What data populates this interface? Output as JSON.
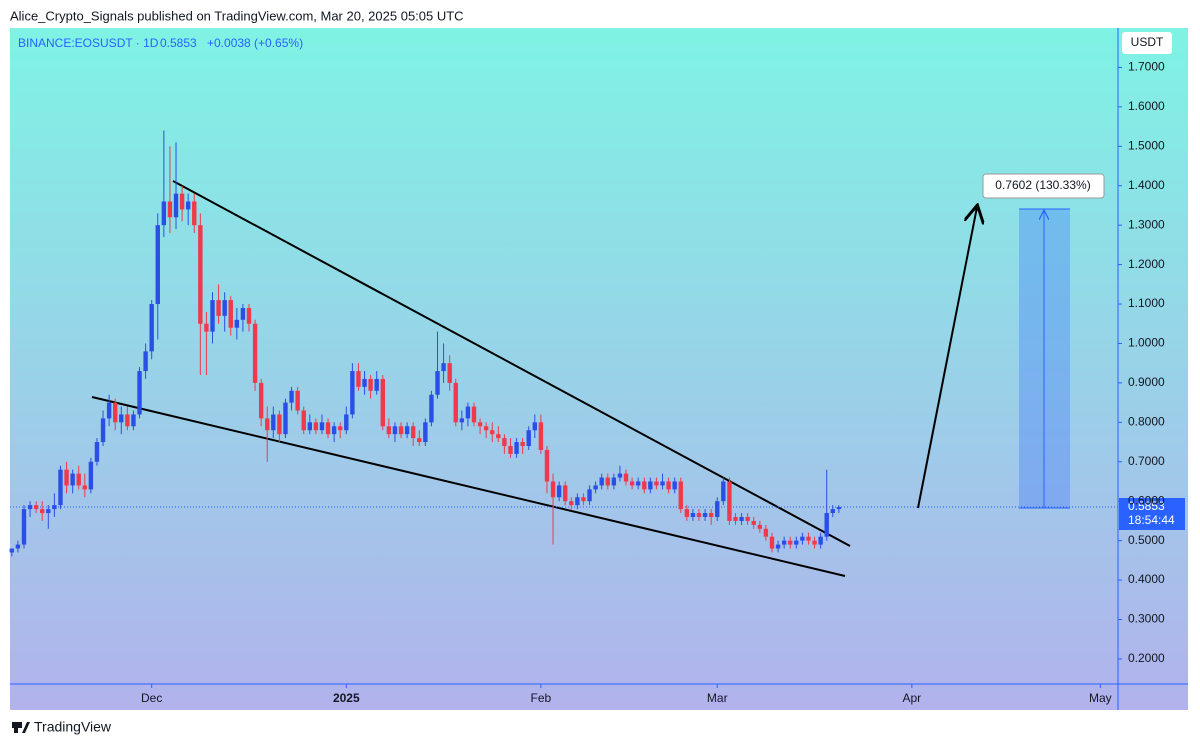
{
  "header": {
    "publisher": "Alice_Crypto_Signals published on TradingView.com, Mar 20, 2025 05:05 UTC",
    "brand": "TradingView"
  },
  "chart_data": {
    "type": "candlestick",
    "symbol": "BINANCE:EOSUSDT · 1D",
    "last": 0.5853,
    "change": "+0.0038 (+0.65%)",
    "currency": "USDT",
    "countdown": "18:54:44",
    "projection_label": "0.7602 (130.33%)",
    "up_color": "#2a4fe6",
    "down_color": "#f0394b",
    "xlim": [
      -0.3,
      181.9
    ],
    "xticks": [
      {
        "value": 23,
        "label": "Dec"
      },
      {
        "value": 55,
        "label": "2025"
      },
      {
        "value": 87,
        "label": "Feb"
      },
      {
        "value": 116,
        "label": "Mar"
      },
      {
        "value": 148,
        "label": "Apr"
      },
      {
        "value": 179,
        "label": "May"
      }
    ],
    "ylim": [
      0.139,
      1.8
    ],
    "yticks": [
      {
        "value": 0.2,
        "label": "0.2000"
      },
      {
        "value": 0.3,
        "label": "0.3000"
      },
      {
        "value": 0.4,
        "label": "0.4000"
      },
      {
        "value": 0.5,
        "label": "0.5000"
      },
      {
        "value": 0.6,
        "label": "0.6000"
      },
      {
        "value": 0.7,
        "label": "0.7000"
      },
      {
        "value": 0.8,
        "label": "0.8000"
      },
      {
        "value": 0.9,
        "label": "0.9000"
      },
      {
        "value": 1.0,
        "label": "1.0000"
      },
      {
        "value": 1.1,
        "label": "1.1000"
      },
      {
        "value": 1.2,
        "label": "1.2000"
      },
      {
        "value": 1.3,
        "label": "1.3000"
      },
      {
        "value": 1.4,
        "label": "1.4000"
      },
      {
        "value": 1.5,
        "label": "1.5000"
      },
      {
        "value": 1.6,
        "label": "1.6000"
      },
      {
        "value": 1.7,
        "label": "1.7000"
      }
    ],
    "ohlc": [
      [
        0.47,
        0.48,
        0.46,
        0.48
      ],
      [
        0.48,
        0.5,
        0.47,
        0.49
      ],
      [
        0.49,
        0.59,
        0.48,
        0.58
      ],
      [
        0.58,
        0.6,
        0.56,
        0.59
      ],
      [
        0.59,
        0.6,
        0.57,
        0.58
      ],
      [
        0.58,
        0.6,
        0.55,
        0.57
      ],
      [
        0.57,
        0.59,
        0.53,
        0.58
      ],
      [
        0.58,
        0.62,
        0.56,
        0.59
      ],
      [
        0.59,
        0.69,
        0.58,
        0.68
      ],
      [
        0.68,
        0.7,
        0.62,
        0.64
      ],
      [
        0.64,
        0.68,
        0.62,
        0.67
      ],
      [
        0.67,
        0.69,
        0.63,
        0.64
      ],
      [
        0.64,
        0.67,
        0.61,
        0.63
      ],
      [
        0.63,
        0.71,
        0.62,
        0.7
      ],
      [
        0.7,
        0.76,
        0.69,
        0.75
      ],
      [
        0.75,
        0.83,
        0.74,
        0.81
      ],
      [
        0.81,
        0.87,
        0.79,
        0.85
      ],
      [
        0.85,
        0.86,
        0.78,
        0.8
      ],
      [
        0.8,
        0.84,
        0.77,
        0.82
      ],
      [
        0.82,
        0.84,
        0.78,
        0.79
      ],
      [
        0.79,
        0.83,
        0.78,
        0.82
      ],
      [
        0.82,
        0.94,
        0.81,
        0.93
      ],
      [
        0.93,
        1.0,
        0.91,
        0.98
      ],
      [
        0.98,
        1.11,
        0.96,
        1.1
      ],
      [
        1.1,
        1.33,
        1.01,
        1.3
      ],
      [
        1.3,
        1.54,
        1.27,
        1.36
      ],
      [
        1.36,
        1.5,
        1.28,
        1.32
      ],
      [
        1.32,
        1.51,
        1.29,
        1.38
      ],
      [
        1.38,
        1.4,
        1.31,
        1.34
      ],
      [
        1.34,
        1.38,
        1.3,
        1.36
      ],
      [
        1.36,
        1.38,
        1.28,
        1.3
      ],
      [
        1.3,
        1.33,
        0.92,
        1.05
      ],
      [
        1.05,
        1.08,
        0.92,
        1.03
      ],
      [
        1.03,
        1.13,
        1.0,
        1.11
      ],
      [
        1.11,
        1.15,
        1.05,
        1.07
      ],
      [
        1.07,
        1.13,
        1.03,
        1.11
      ],
      [
        1.11,
        1.12,
        1.02,
        1.04
      ],
      [
        1.04,
        1.09,
        1.01,
        1.06
      ],
      [
        1.06,
        1.1,
        1.03,
        1.09
      ],
      [
        1.09,
        1.1,
        1.03,
        1.05
      ],
      [
        1.05,
        1.06,
        0.88,
        0.9
      ],
      [
        0.9,
        0.91,
        0.79,
        0.81
      ],
      [
        0.81,
        0.84,
        0.7,
        0.78
      ],
      [
        0.78,
        0.84,
        0.76,
        0.82
      ],
      [
        0.82,
        0.83,
        0.75,
        0.77
      ],
      [
        0.77,
        0.86,
        0.76,
        0.85
      ],
      [
        0.85,
        0.89,
        0.83,
        0.88
      ],
      [
        0.88,
        0.89,
        0.82,
        0.83
      ],
      [
        0.83,
        0.84,
        0.77,
        0.78
      ],
      [
        0.78,
        0.82,
        0.77,
        0.8
      ],
      [
        0.8,
        0.81,
        0.77,
        0.78
      ],
      [
        0.78,
        0.82,
        0.77,
        0.8
      ],
      [
        0.8,
        0.81,
        0.76,
        0.77
      ],
      [
        0.77,
        0.8,
        0.75,
        0.79
      ],
      [
        0.79,
        0.8,
        0.76,
        0.78
      ],
      [
        0.78,
        0.84,
        0.77,
        0.82
      ],
      [
        0.82,
        0.95,
        0.81,
        0.93
      ],
      [
        0.93,
        0.95,
        0.88,
        0.89
      ],
      [
        0.89,
        0.93,
        0.87,
        0.91
      ],
      [
        0.91,
        0.92,
        0.86,
        0.88
      ],
      [
        0.88,
        0.93,
        0.87,
        0.91
      ],
      [
        0.91,
        0.92,
        0.78,
        0.79
      ],
      [
        0.79,
        0.81,
        0.76,
        0.77
      ],
      [
        0.77,
        0.8,
        0.75,
        0.79
      ],
      [
        0.79,
        0.8,
        0.76,
        0.77
      ],
      [
        0.77,
        0.8,
        0.76,
        0.79
      ],
      [
        0.79,
        0.8,
        0.74,
        0.76
      ],
      [
        0.76,
        0.78,
        0.74,
        0.75
      ],
      [
        0.75,
        0.81,
        0.74,
        0.8
      ],
      [
        0.8,
        0.88,
        0.79,
        0.87
      ],
      [
        0.87,
        1.03,
        0.86,
        0.93
      ],
      [
        0.93,
        1.0,
        0.9,
        0.95
      ],
      [
        0.95,
        0.97,
        0.88,
        0.9
      ],
      [
        0.9,
        0.91,
        0.79,
        0.8
      ],
      [
        0.8,
        0.83,
        0.78,
        0.81
      ],
      [
        0.81,
        0.85,
        0.79,
        0.84
      ],
      [
        0.84,
        0.85,
        0.79,
        0.8
      ],
      [
        0.8,
        0.81,
        0.77,
        0.79
      ],
      [
        0.79,
        0.8,
        0.76,
        0.78
      ],
      [
        0.78,
        0.8,
        0.75,
        0.77
      ],
      [
        0.77,
        0.79,
        0.75,
        0.76
      ],
      [
        0.76,
        0.77,
        0.72,
        0.74
      ],
      [
        0.74,
        0.76,
        0.71,
        0.72
      ],
      [
        0.72,
        0.76,
        0.71,
        0.75
      ],
      [
        0.75,
        0.76,
        0.72,
        0.74
      ],
      [
        0.74,
        0.79,
        0.73,
        0.78
      ],
      [
        0.78,
        0.82,
        0.76,
        0.8
      ],
      [
        0.8,
        0.82,
        0.72,
        0.73
      ],
      [
        0.73,
        0.74,
        0.62,
        0.65
      ],
      [
        0.65,
        0.67,
        0.49,
        0.61
      ],
      [
        0.61,
        0.65,
        0.6,
        0.64
      ],
      [
        0.64,
        0.65,
        0.59,
        0.6
      ],
      [
        0.6,
        0.61,
        0.58,
        0.59
      ],
      [
        0.59,
        0.62,
        0.58,
        0.61
      ],
      [
        0.61,
        0.62,
        0.59,
        0.6
      ],
      [
        0.6,
        0.64,
        0.59,
        0.63
      ],
      [
        0.63,
        0.65,
        0.62,
        0.64
      ],
      [
        0.64,
        0.67,
        0.63,
        0.66
      ],
      [
        0.66,
        0.67,
        0.63,
        0.64
      ],
      [
        0.64,
        0.67,
        0.63,
        0.66
      ],
      [
        0.66,
        0.69,
        0.65,
        0.67
      ],
      [
        0.67,
        0.68,
        0.64,
        0.65
      ],
      [
        0.65,
        0.66,
        0.63,
        0.64
      ],
      [
        0.64,
        0.66,
        0.63,
        0.65
      ],
      [
        0.65,
        0.66,
        0.62,
        0.63
      ],
      [
        0.63,
        0.66,
        0.62,
        0.65
      ],
      [
        0.65,
        0.66,
        0.63,
        0.64
      ],
      [
        0.64,
        0.67,
        0.63,
        0.65
      ],
      [
        0.65,
        0.66,
        0.62,
        0.63
      ],
      [
        0.63,
        0.66,
        0.62,
        0.65
      ],
      [
        0.65,
        0.66,
        0.57,
        0.58
      ],
      [
        0.58,
        0.59,
        0.55,
        0.56
      ],
      [
        0.56,
        0.58,
        0.55,
        0.57
      ],
      [
        0.57,
        0.58,
        0.55,
        0.56
      ],
      [
        0.56,
        0.58,
        0.55,
        0.57
      ],
      [
        0.57,
        0.58,
        0.54,
        0.56
      ],
      [
        0.56,
        0.61,
        0.55,
        0.6
      ],
      [
        0.6,
        0.66,
        0.59,
        0.65
      ],
      [
        0.65,
        0.66,
        0.54,
        0.55
      ],
      [
        0.56,
        0.57,
        0.54,
        0.55
      ],
      [
        0.55,
        0.57,
        0.54,
        0.56
      ],
      [
        0.56,
        0.57,
        0.54,
        0.55
      ],
      [
        0.55,
        0.56,
        0.53,
        0.54
      ],
      [
        0.54,
        0.55,
        0.52,
        0.53
      ],
      [
        0.53,
        0.54,
        0.5,
        0.51
      ],
      [
        0.51,
        0.52,
        0.47,
        0.48
      ],
      [
        0.48,
        0.5,
        0.47,
        0.49
      ],
      [
        0.49,
        0.51,
        0.48,
        0.5
      ],
      [
        0.5,
        0.51,
        0.48,
        0.49
      ],
      [
        0.49,
        0.51,
        0.48,
        0.5
      ],
      [
        0.5,
        0.52,
        0.49,
        0.51
      ],
      [
        0.51,
        0.52,
        0.49,
        0.5
      ],
      [
        0.5,
        0.51,
        0.48,
        0.49
      ],
      [
        0.49,
        0.52,
        0.48,
        0.51
      ],
      [
        0.51,
        0.68,
        0.5,
        0.57
      ],
      [
        0.57,
        0.59,
        0.56,
        0.58
      ],
      [
        0.58,
        0.59,
        0.57,
        0.5853
      ]
    ]
  }
}
